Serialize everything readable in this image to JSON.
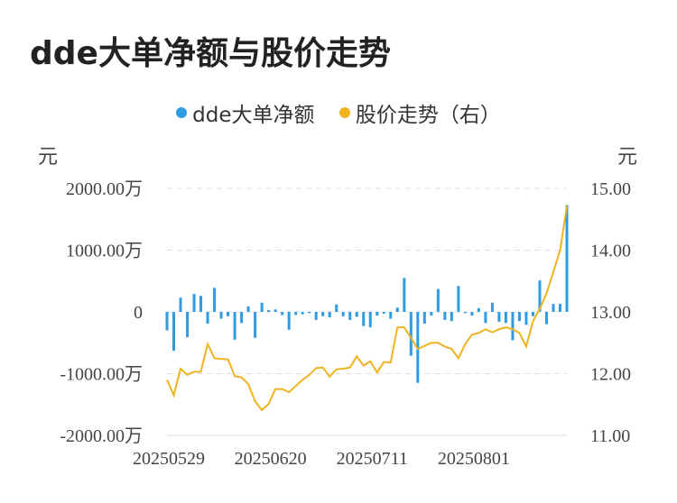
{
  "title": "dde大单净额与股价走势",
  "units": {
    "left": "元",
    "right": "元"
  },
  "legend": [
    {
      "name": "dde大单净额",
      "color": "#2f9be3"
    },
    {
      "name": "股价走势（右）",
      "color": "#f0b320"
    }
  ],
  "chart_data": {
    "type": "bar+line",
    "x_tick_labels": [
      "20250529",
      "20250620",
      "20250711",
      "20250801"
    ],
    "x_tick_indices": [
      0,
      15,
      30,
      45
    ],
    "y_left": {
      "ticks": [
        "2000.00万",
        "1000.00万",
        "0",
        "-1000.00万",
        "-2000.00万"
      ],
      "range": [
        -2000,
        2000
      ],
      "unit": "万"
    },
    "y_right": {
      "ticks": [
        "15.00",
        "14.00",
        "13.00",
        "12.00",
        "11.00"
      ],
      "range": [
        11,
        15
      ]
    },
    "series": [
      {
        "name": "dde大单净额",
        "type": "bar",
        "values": [
          -300,
          -630,
          230,
          -410,
          290,
          260,
          -190,
          390,
          -110,
          -70,
          -450,
          -180,
          90,
          -420,
          150,
          30,
          40,
          -50,
          -290,
          -50,
          -40,
          -20,
          -130,
          -70,
          -90,
          120,
          -70,
          -130,
          -80,
          -230,
          -250,
          -60,
          -30,
          -110,
          70,
          550,
          -710,
          -1150,
          -190,
          -60,
          370,
          -130,
          -150,
          420,
          -20,
          -60,
          60,
          -180,
          150,
          -160,
          -180,
          -460,
          -150,
          -210,
          -70,
          510,
          -200,
          130,
          130,
          1730
        ],
        "color": "#2f9be3"
      },
      {
        "name": "股价走势（右）",
        "type": "line",
        "values": [
          11.9,
          11.65,
          12.08,
          11.98,
          12.03,
          12.03,
          12.48,
          12.25,
          12.24,
          12.23,
          11.96,
          11.94,
          11.83,
          11.55,
          11.41,
          11.51,
          11.75,
          11.75,
          11.7,
          11.8,
          11.9,
          11.98,
          12.09,
          12.1,
          11.95,
          12.07,
          12.08,
          12.1,
          12.28,
          12.13,
          12.2,
          12.02,
          12.19,
          12.18,
          12.75,
          12.75,
          12.58,
          12.4,
          12.45,
          12.5,
          12.5,
          12.44,
          12.4,
          12.25,
          12.48,
          12.63,
          12.66,
          12.72,
          12.67,
          12.72,
          12.75,
          12.72,
          12.66,
          12.44,
          12.85,
          13.05,
          13.3,
          13.65,
          14.0,
          14.72
        ],
        "color": "#f0b320"
      }
    ],
    "grid": true,
    "legend_position": "top-center"
  }
}
